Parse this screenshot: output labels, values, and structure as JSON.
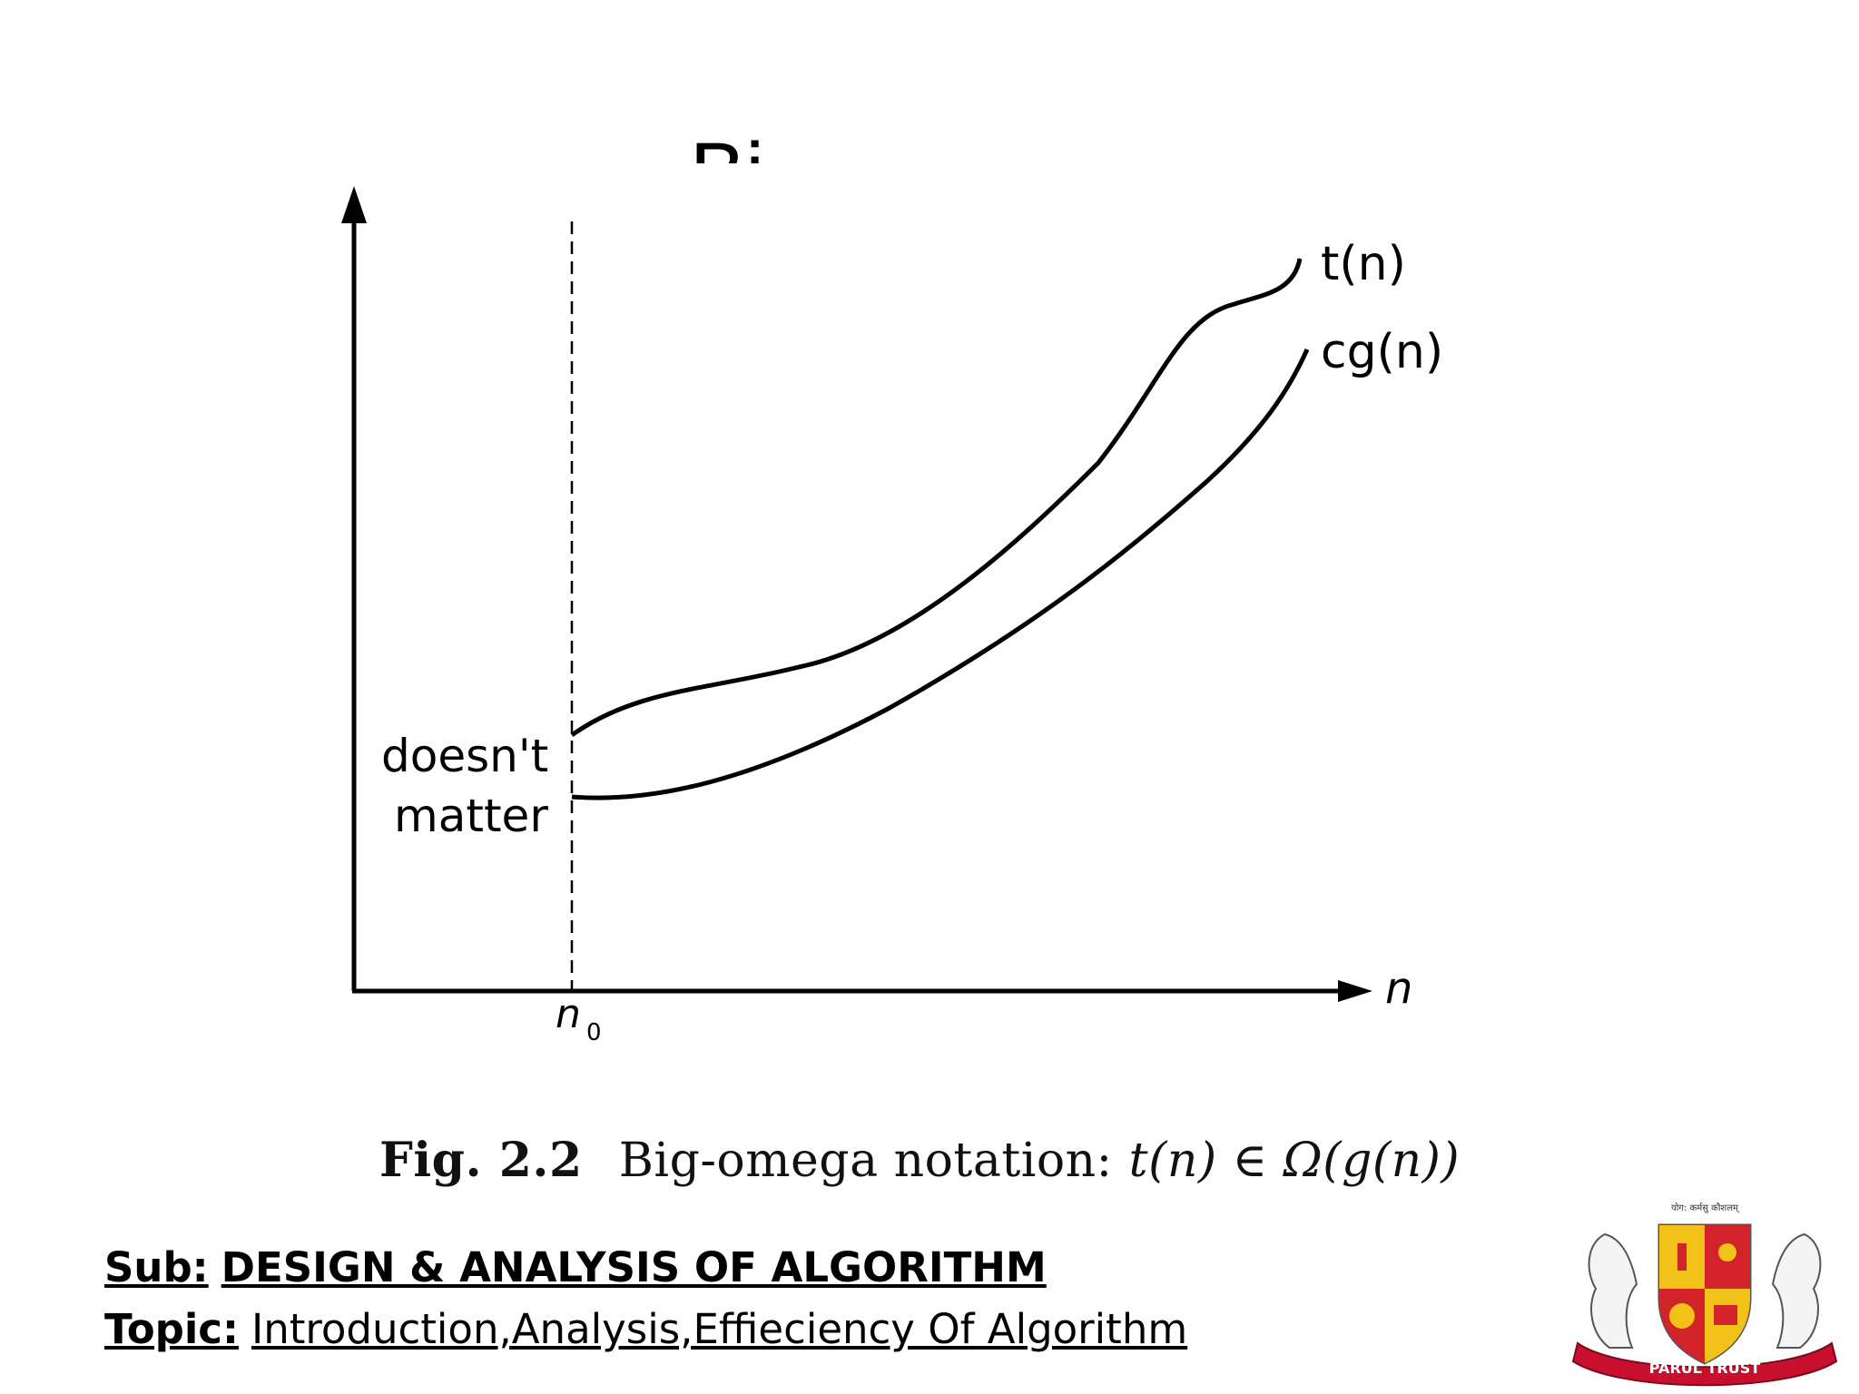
{
  "slide": {
    "title_fragment": "Bi"
  },
  "diagram": {
    "curve_labels": {
      "upper": "t(n)",
      "lower": "cg(n)"
    },
    "region_label_line1": "doesn't",
    "region_label_line2": "matter",
    "x_axis_label": "n",
    "threshold_label": "n",
    "threshold_subscript": "0",
    "caption": {
      "fig": "Fig. 2.2",
      "text": "Big-omega notation:",
      "math": "t(n) ∈ Ω(g(n))"
    }
  },
  "footer": {
    "sub_label": "Sub:",
    "sub_value": "DESIGN & ANALYSIS OF ALGORITHM ",
    "topic_label": "Topic:",
    "topic_value": "Introduction,Analysis,Effieciency Of Algorithm"
  },
  "logo": {
    "banner_text": "PARUL TRUST",
    "motto": "योग: कर्मसु कौशलम्",
    "colors": {
      "shield_red": "#d2232a",
      "shield_yellow": "#f2c21b",
      "banner_red": "#c8102e"
    }
  }
}
